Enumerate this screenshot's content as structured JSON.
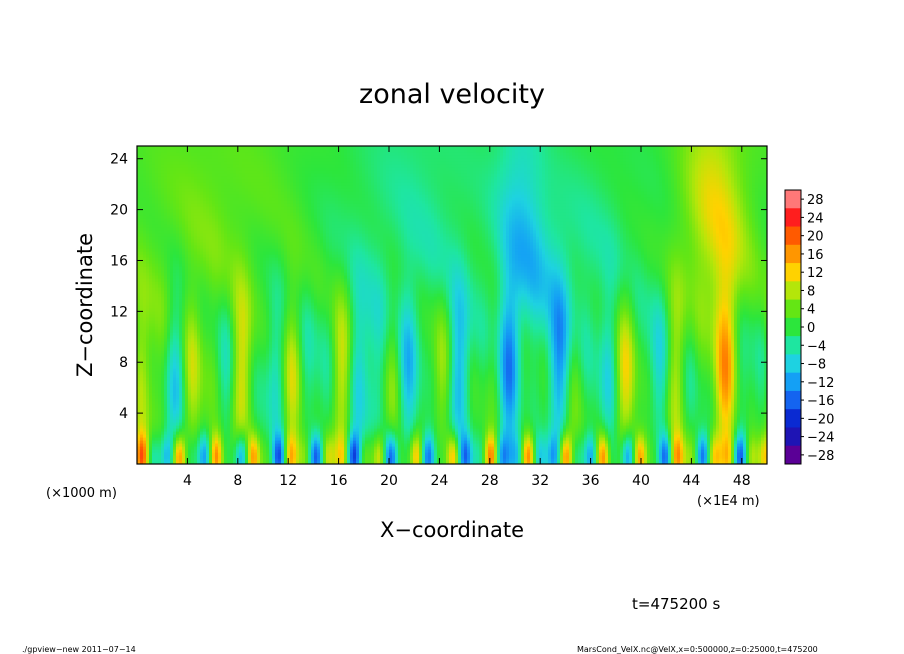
{
  "chart_data": {
    "type": "heatmap",
    "title": "zonal velocity",
    "xlabel": "X−coordinate",
    "ylabel": "Z−coordinate",
    "x_unit_label": "(×1E4 m)",
    "y_unit_label": "(×1000 m)",
    "xlim": [
      0,
      50
    ],
    "ylim": [
      0,
      25
    ],
    "x_ticks": [
      4,
      8,
      12,
      16,
      20,
      24,
      28,
      32,
      36,
      40,
      44,
      48
    ],
    "y_ticks": [
      4,
      8,
      12,
      16,
      20,
      24
    ],
    "x_tick_labels": [
      "4",
      "8",
      "12",
      "16",
      "20",
      "24",
      "28",
      "32",
      "36",
      "40",
      "44",
      "48"
    ],
    "y_tick_labels": [
      "4",
      "8",
      "12",
      "16",
      "20",
      "24"
    ],
    "colorbar_levels": [
      28,
      24,
      20,
      16,
      12,
      8,
      4,
      0,
      -4,
      -8,
      -12,
      -16,
      -20,
      -24,
      -28
    ],
    "colorbar_labels": [
      "28",
      "24",
      "20",
      "16",
      "12",
      "8",
      "4",
      "0",
      "−4",
      "−8",
      "−12",
      "−16",
      "−20",
      "−24",
      "−28"
    ],
    "colormap": [
      {
        "v": -28,
        "c": "#5a0096"
      },
      {
        "v": -24,
        "c": "#1e14b4"
      },
      {
        "v": -20,
        "c": "#0a2ad2"
      },
      {
        "v": -16,
        "c": "#1464f0"
      },
      {
        "v": -12,
        "c": "#14a0f5"
      },
      {
        "v": -8,
        "c": "#1ed2e1"
      },
      {
        "v": -4,
        "c": "#1ee6a0"
      },
      {
        "v": 0,
        "c": "#2ce63c"
      },
      {
        "v": 4,
        "c": "#64e614"
      },
      {
        "v": 8,
        "c": "#b4e60a"
      },
      {
        "v": 12,
        "c": "#ffd200"
      },
      {
        "v": 16,
        "c": "#ff9600"
      },
      {
        "v": 20,
        "c": "#ff5a00"
      },
      {
        "v": 24,
        "c": "#ff1e1e"
      },
      {
        "v": 28,
        "c": "#ff7878"
      }
    ],
    "field_description_values": {
      "dominant_range": [
        -8,
        8
      ],
      "upper_blue_band_x": [
        30,
        31
      ],
      "upper_orange_band_x": [
        44,
        47
      ],
      "lower_cells_z": [
        0,
        12
      ]
    },
    "grid": false,
    "legend": "right-colorbar"
  },
  "annotations": {
    "time": "t=475200 s",
    "footer_left": "./gpview−new   2011−07−14",
    "footer_right": "MarsCond_VelX.nc@VelX,x=0:500000,z=0:25000,t=475200"
  }
}
